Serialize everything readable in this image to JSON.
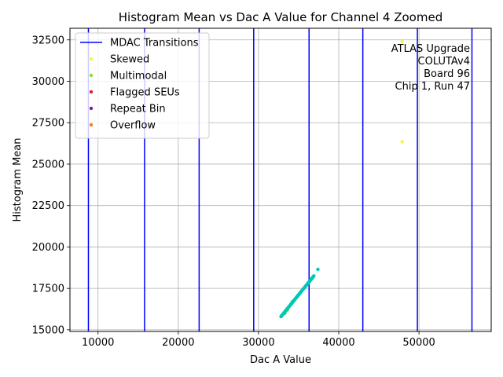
{
  "chart_data": {
    "type": "scatter",
    "title": "Histogram Mean vs Dac A Value for Channel 4 Zoomed",
    "xlabel": "Dac A Value",
    "ylabel": "Histogram Mean",
    "xlim": [
      6500,
      59000
    ],
    "ylim": [
      14900,
      33200
    ],
    "xticks": [
      10000,
      20000,
      30000,
      40000,
      50000
    ],
    "xtick_labels": [
      "10000",
      "20000",
      "30000",
      "40000",
      "50000"
    ],
    "yticks": [
      15000,
      17500,
      20000,
      22500,
      25000,
      27500,
      30000,
      32500
    ],
    "ytick_labels": [
      "15000",
      "17500",
      "20000",
      "22500",
      "25000",
      "27500",
      "30000",
      "32500"
    ],
    "grid": true,
    "legend_position": "top-left",
    "vlines": {
      "name": "MDAC Transitions",
      "color": "#0000ff",
      "x": [
        8800,
        15800,
        22600,
        29400,
        36300,
        43000,
        49800,
        56600
      ]
    },
    "series": [
      {
        "name": "Skewed",
        "color": "#f5f542",
        "points": [
          [
            47900,
            32400
          ],
          [
            47900,
            26350
          ]
        ]
      },
      {
        "name": "Multimodal",
        "color": "#8be02c",
        "points": [
          [
            33300,
            16000
          ],
          [
            33600,
            16200
          ],
          [
            33900,
            16450
          ],
          [
            34200,
            16700
          ]
        ]
      },
      {
        "name": "Flagged SEUs",
        "color": "#d62728",
        "points": []
      },
      {
        "name": "Repeat Bin",
        "color": "#7b1fa2",
        "points": []
      },
      {
        "name": "Overflow",
        "color": "#ff7f0e",
        "points": []
      },
      {
        "name": "",
        "color": "#00c8b4",
        "line": {
          "x0": 32800,
          "y0": 15800,
          "x1": 36900,
          "y1": 18250,
          "count": 80
        },
        "points": [
          [
            37400,
            18650
          ]
        ]
      }
    ],
    "annotation": [
      "ATLAS Upgrade",
      "COLUTAv4",
      "Board 96",
      "Chip 1, Run 47"
    ]
  }
}
